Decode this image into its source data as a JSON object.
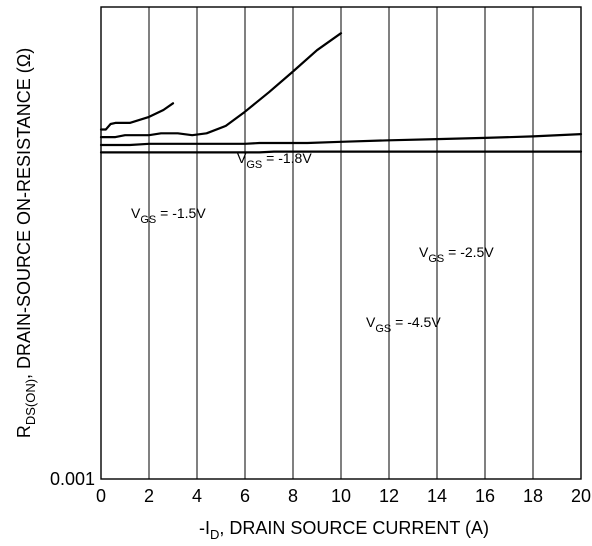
{
  "chart_data": {
    "type": "line",
    "xlabel": {
      "prefix": "-I",
      "sub": "D",
      "rest": ", DRAIN SOURCE CURRENT (A)"
    },
    "ylabel": {
      "prefix": "R",
      "sub": "DS(ON)",
      "rest": ", DRAIN-SOURCE ON-RESISTANCE (Ω)"
    },
    "xlim": [
      0,
      20
    ],
    "x_ticks": [
      0,
      2,
      4,
      6,
      8,
      10,
      12,
      14,
      16,
      18,
      20
    ],
    "ylim": [
      0.001,
      0.01
    ],
    "y_scale": "log",
    "y_tick_labels": [
      "0.001"
    ],
    "grid": "vertical lines at every x tick",
    "series": [
      {
        "label_parts": [
          "V",
          "GS",
          " = -1.5V"
        ],
        "x": [
          0,
          0.2,
          0.4,
          0.6,
          1.2,
          2.0,
          2.6,
          3.0
        ],
        "y": [
          0.0055,
          0.0055,
          0.00565,
          0.00568,
          0.00568,
          0.00585,
          0.00605,
          0.00625
        ]
      },
      {
        "label_parts": [
          "V",
          "GS",
          " = -1.8V"
        ],
        "x": [
          0,
          0.6,
          1.0,
          2.0,
          2.5,
          3.2,
          3.8,
          4.4,
          5.2,
          6.0,
          7.0,
          8.0,
          9.0,
          10.0
        ],
        "y": [
          0.0053,
          0.0053,
          0.00535,
          0.00535,
          0.0054,
          0.0054,
          0.00535,
          0.0054,
          0.0056,
          0.006,
          0.0066,
          0.0073,
          0.0081,
          0.0088
        ]
      },
      {
        "label_parts": [
          "V",
          "GS",
          " = -2.5V"
        ],
        "x": [
          0,
          1.2,
          2.0,
          6.0,
          6.6,
          8.6,
          10,
          12,
          14,
          16,
          18,
          20
        ],
        "y": [
          0.0051,
          0.0051,
          0.00513,
          0.00513,
          0.00515,
          0.00515,
          0.00518,
          0.00522,
          0.00525,
          0.00528,
          0.00532,
          0.00538
        ]
      },
      {
        "label_parts": [
          "V",
          "GS",
          " = -4.5V"
        ],
        "x": [
          0,
          6.6,
          7.2,
          20
        ],
        "y": [
          0.00492,
          0.00492,
          0.00494,
          0.00494
        ]
      }
    ]
  }
}
